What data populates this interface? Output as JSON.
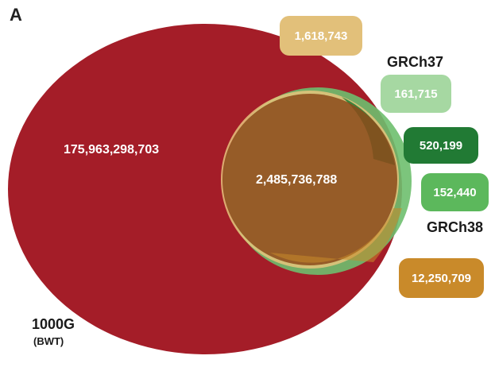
{
  "panel_label": "A",
  "sets": {
    "bwt": {
      "name": "1000G",
      "subname": "(BWT)",
      "color": "#a41d28"
    },
    "grch37": {
      "name": "GRCh37",
      "color": "#e6c47c"
    },
    "grch38": {
      "name": "GRCh38",
      "color": "#6ebf6e"
    }
  },
  "regions": {
    "bwt_only": "175,963,298,703",
    "all_three": "2,485,736,788",
    "grch37_only": "1,618,743",
    "grch37_grch38_partial": "161,715",
    "grch37_grch38": "520,199",
    "grch38_only": "152,440",
    "bwt_grch37": "12,250,709"
  },
  "colors": {
    "badge_grch37_only": "#e2c07a",
    "badge_161": "#a6d8a2",
    "badge_520": "#217a34",
    "badge_152": "#5cb85c",
    "badge_12m": "#c98a2a",
    "overlap_center": "#8b4a1a"
  }
}
